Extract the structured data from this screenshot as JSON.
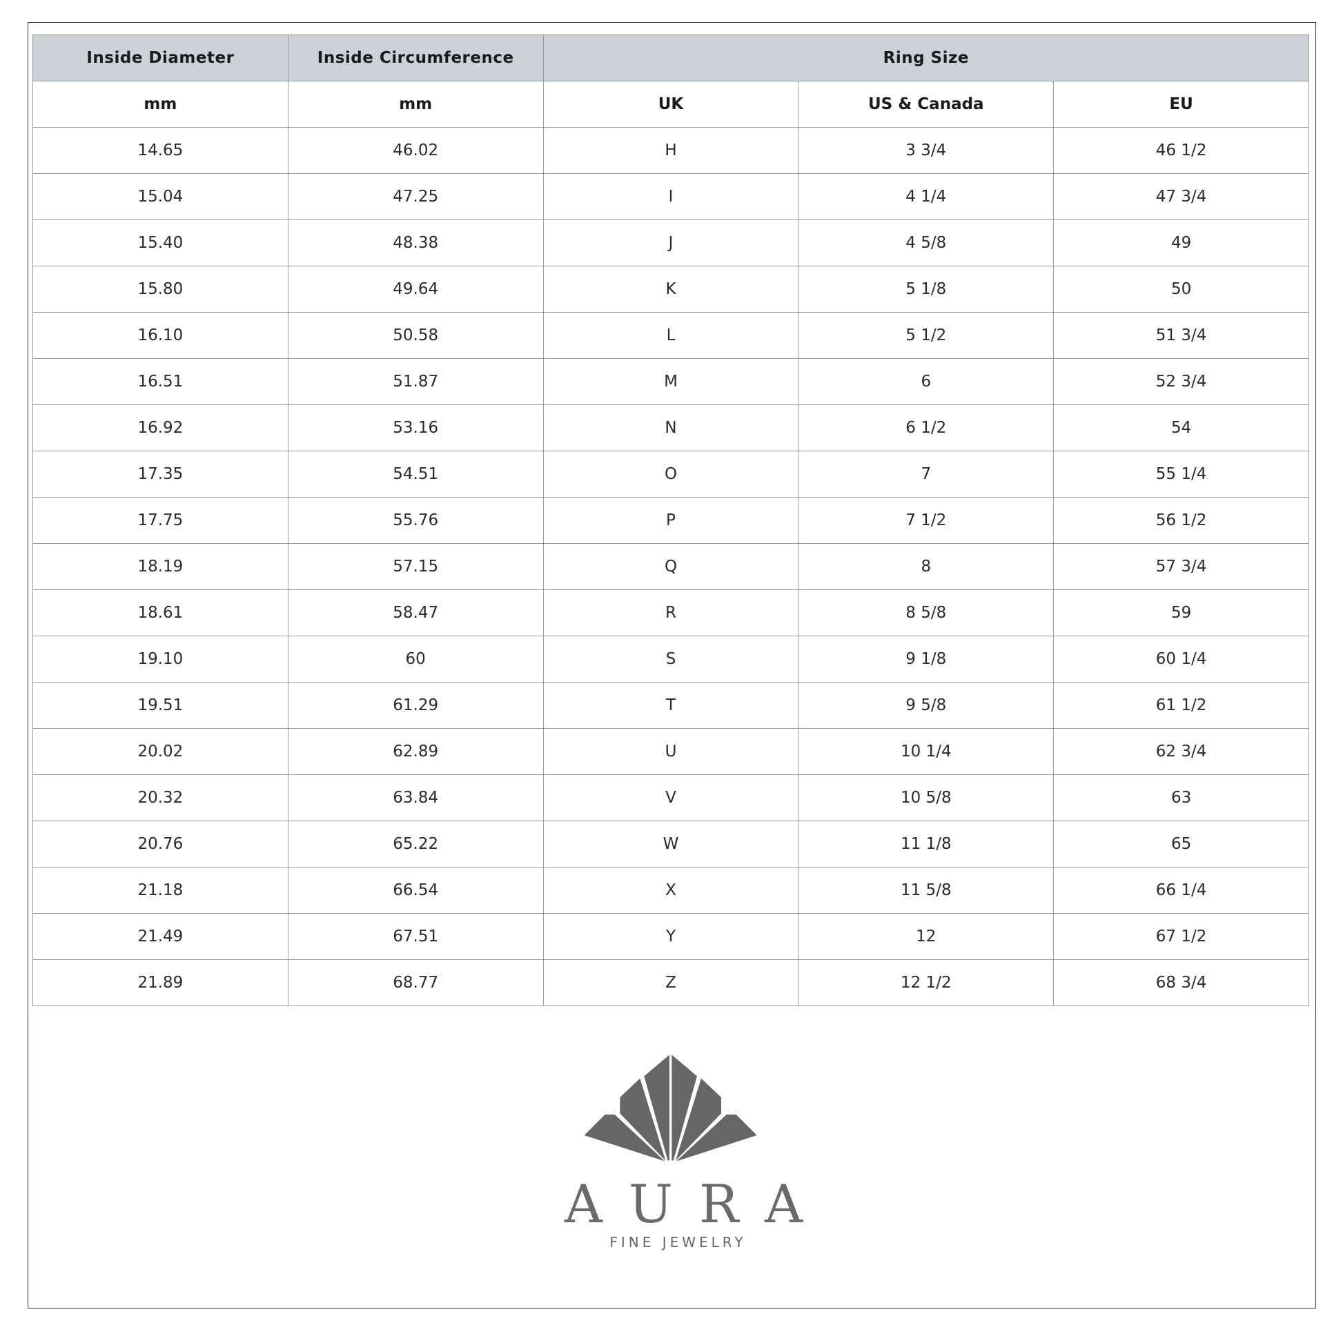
{
  "header": {
    "col1": "Inside Diameter",
    "col2": "Inside Circumference",
    "group": "Ring Size"
  },
  "subheader": {
    "col1": "mm",
    "col2": "mm",
    "uk": "UK",
    "us": "US & Canada",
    "eu": "EU"
  },
  "rows": [
    [
      "14.65",
      "46.02",
      "H",
      "3 3/4",
      "46 1/2"
    ],
    [
      "15.04",
      "47.25",
      "I",
      "4 1/4",
      "47 3/4"
    ],
    [
      "15.40",
      "48.38",
      "J",
      "4 5/8",
      "49"
    ],
    [
      "15.80",
      "49.64",
      "K",
      "5 1/8",
      "50"
    ],
    [
      "16.10",
      "50.58",
      "L",
      "5 1/2",
      "51 3/4"
    ],
    [
      "16.51",
      "51.87",
      "M",
      "6",
      "52 3/4"
    ],
    [
      "16.92",
      "53.16",
      "N",
      "6 1/2",
      "54"
    ],
    [
      "17.35",
      "54.51",
      "O",
      "7",
      "55 1/4"
    ],
    [
      "17.75",
      "55.76",
      "P",
      "7 1/2",
      "56 1/2"
    ],
    [
      "18.19",
      "57.15",
      "Q",
      "8",
      "57 3/4"
    ],
    [
      "18.61",
      "58.47",
      "R",
      "8 5/8",
      "59"
    ],
    [
      "19.10",
      "60",
      "S",
      "9 1/8",
      "60 1/4"
    ],
    [
      "19.51",
      "61.29",
      "T",
      "9 5/8",
      "61 1/2"
    ],
    [
      "20.02",
      "62.89",
      "U",
      "10 1/4",
      "62 3/4"
    ],
    [
      "20.32",
      "63.84",
      "V",
      "10 5/8",
      "63"
    ],
    [
      "20.76",
      "65.22",
      "W",
      "11 1/8",
      "65"
    ],
    [
      "21.18",
      "66.54",
      "X",
      "11 5/8",
      "66 1/4"
    ],
    [
      "21.49",
      "67.51",
      "Y",
      "12",
      "67 1/2"
    ],
    [
      "21.89",
      "68.77",
      "Z",
      "12 1/2",
      "68 3/4"
    ]
  ],
  "brand": {
    "name": "AURA",
    "tagline": "FINE JEWELRY"
  },
  "colors": {
    "header_bg": "#cdd2d8",
    "logo": "#666666"
  }
}
